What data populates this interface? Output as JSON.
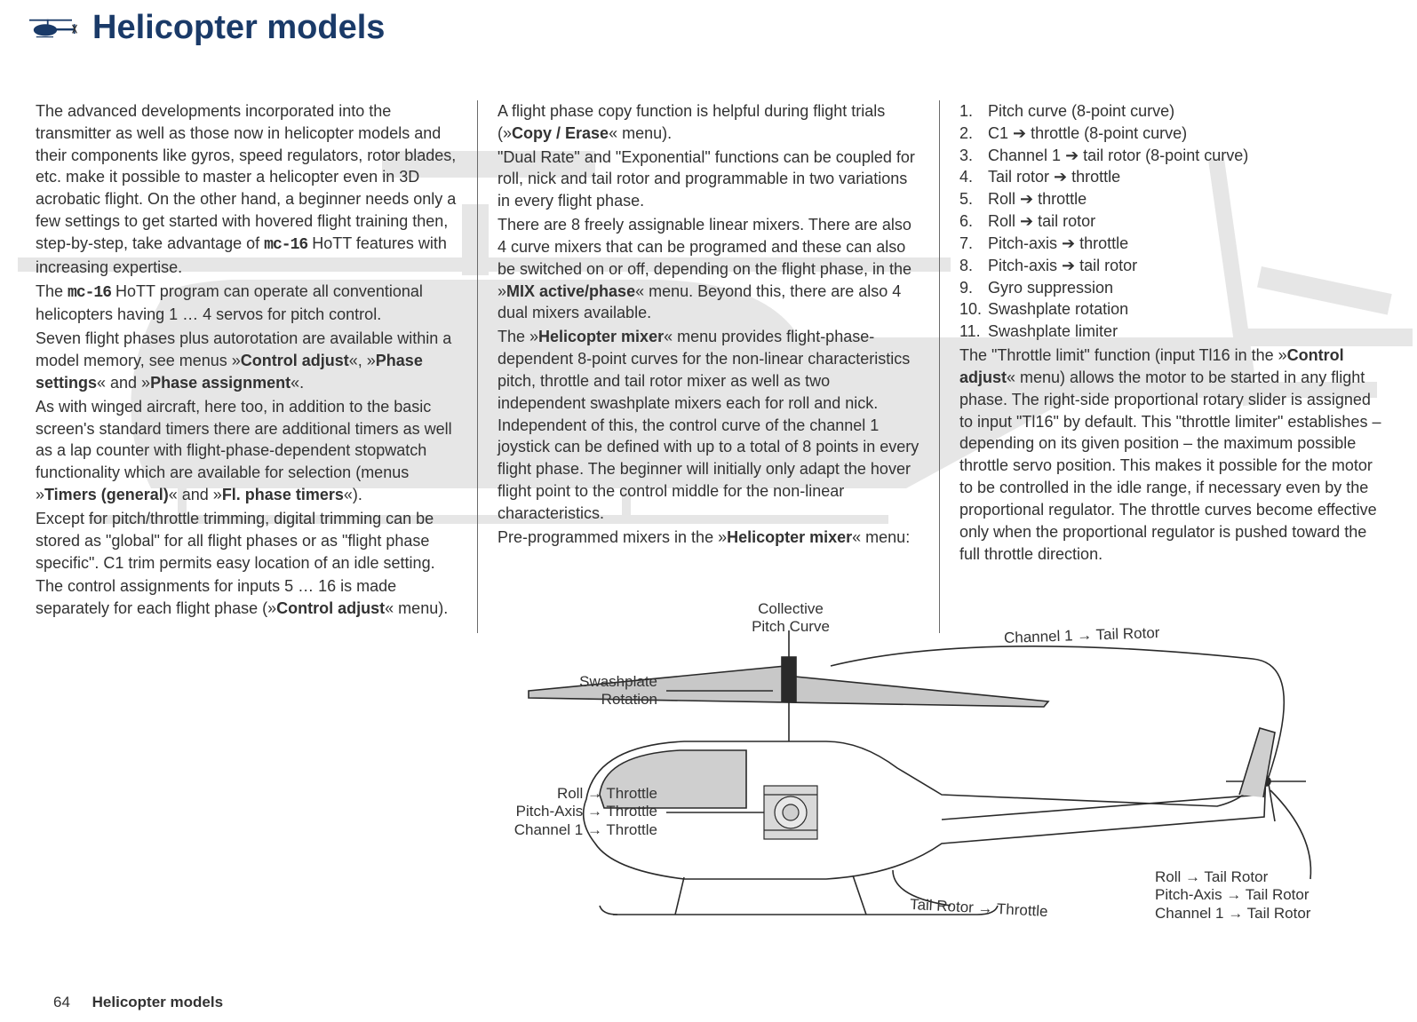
{
  "header": {
    "title": "Helicopter models"
  },
  "col1": {
    "p1a": "The advanced developments incorporated into the transmitter as well as those now in helicopter models and their components like gyros, speed regulators, rotor blades, etc. make it possible to master a helicopter even in 3D acrobatic flight. On the other hand, a beginner needs only a few settings to get started with hovered flight training then, step-by-step, take advantage of ",
    "p1_model": "mc-16",
    "p1b": " HoTT features with increasing expertise.",
    "p2a": "The ",
    "p2_model": "mc-16",
    "p2b": " HoTT program can operate all conventional helicopters having 1 … 4 servos for pitch control.",
    "p3a": "Seven flight phases plus autorotation are available within a model memory, see menus »",
    "p3m1": "Control adjust",
    "p3c": "«, »",
    "p3m2": "Phase settings",
    "p3d": "« and »",
    "p3m3": "Phase assignment",
    "p3e": "«.",
    "p4a": "As with winged aircraft, here too, in addition to the basic screen's standard timers there are additional timers as well as a lap counter with flight-phase-dependent stopwatch functionality which are available for selection (menus »",
    "p4m1": "Timers (general)",
    "p4b": "« and »",
    "p4m2": "Fl. phase timers",
    "p4c": "«).",
    "p5": "Except for pitch/throttle trimming, digital trimming can be stored as \"global\" for all flight phases or as \"flight phase specific\". C1 trim permits easy location of an idle setting.",
    "p6a": "The control assignments for inputs 5 … 16 is made separately for each flight phase (»",
    "p6m1": "Control adjust",
    "p6b": "« menu)."
  },
  "col2": {
    "p1a": "A flight phase copy function is helpful during flight trials (»",
    "p1m1": "Copy / Erase",
    "p1b": "« menu).",
    "p2": "\"Dual Rate\" and \"Exponential\" functions can be coupled for roll, nick and tail rotor and programmable in two variations in every flight phase.",
    "p3a": "There are 8 freely assignable linear mixers. There are also 4 curve mixers that can be programed and these can also be switched on or off, depending on the flight phase, in the »",
    "p3m1": "MIX active/phase",
    "p3b": "« menu. Beyond this, there are also 4 dual mixers available.",
    "p4a": "The »",
    "p4m1": "Helicopter mixer",
    "p4b": "« menu provides flight-phase-dependent 8-point curves for the non-linear characteristics pitch, throttle and tail rotor mixer as well as two independent swashplate mixers each for roll and nick. Independent of this, the control curve of the channel 1 joystick can be defined with up to a total of 8 points in every flight phase. The beginner will initially only adapt the hover flight point to the control middle for the non-linear characteristics.",
    "p5a": "Pre-programmed mixers in the »",
    "p5m1": "Helicopter mixer",
    "p5b": "« menu:"
  },
  "col3": {
    "mixers": [
      {
        "n": "1.",
        "a": "Pitch curve (8-point curve)"
      },
      {
        "n": "2.",
        "a": "C1 ➔ throttle (8-point curve)"
      },
      {
        "n": "3.",
        "a": "Channel 1 ➔ tail rotor (8-point curve)"
      },
      {
        "n": "4.",
        "a": "Tail rotor ➔ throttle"
      },
      {
        "n": "5.",
        "a": "Roll ➔ throttle"
      },
      {
        "n": "6.",
        "a": "Roll ➔ tail rotor"
      },
      {
        "n": "7.",
        "a": "Pitch-axis ➔ throttle"
      },
      {
        "n": "8.",
        "a": "Pitch-axis ➔ tail rotor"
      },
      {
        "n": "9.",
        "a": "Gyro suppression"
      },
      {
        "n": "10.",
        "a": "Swashplate rotation"
      },
      {
        "n": "11.",
        "a": "Swashplate limiter"
      }
    ],
    "p1a": "The \"Throttle limit\" function (input Tl16 in the »",
    "p1m1": "Control adjust",
    "p1b": "« menu) allows the motor to be started in any flight phase. The right-side proportional rotary slider is assigned to input \"Tl16\" by default. This \"throttle limiter\" establishes – depending on its given position – the maximum possible throttle servo position. This makes it possible for the motor to be controlled in the idle range, if necessary even by the proportional regulator. The throttle curves become effective only when the proportional regulator is pushed toward the full throttle direction."
  },
  "diagram": {
    "collective": "Collective\nPitch Curve",
    "swash": "Swashplate\nRotation",
    "throttle_group": "Roll → Throttle\nPitch-Axis → Throttle\nChannel 1 → Throttle",
    "ch1_tail": "Channel 1 → Tail Rotor",
    "tail_throttle": "Tail Rotor → Throttle",
    "tail_group": "Roll → Tail Rotor\nPitch-Axis → Tail Rotor\nChannel 1 → Tail Rotor"
  },
  "footer": {
    "page": "64",
    "title": "Helicopter models"
  },
  "colors": {
    "accent": "#1a3a68",
    "text": "#323232",
    "bg_silhouette": "#a9a9a9"
  }
}
